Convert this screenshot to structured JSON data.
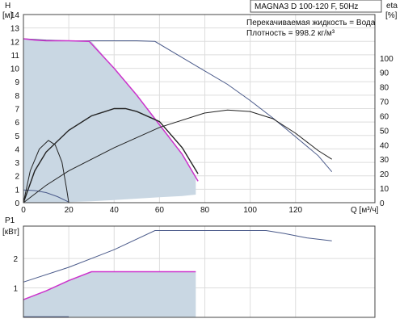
{
  "chart_data": [
    {
      "type": "line",
      "title": "MAGNA3 D 100-120 F, 50Hz",
      "annotations": [
        "Перекачиваемая жидкость = Вода",
        "Плотность = 998.2 кг/м³"
      ],
      "xlabel": "Q [м³/ч]",
      "ylabel": "H",
      "ylabel_unit": "[м]",
      "y2label": "eta",
      "y2label_unit": "[%]",
      "xlim": [
        0,
        155
      ],
      "ylim": [
        0,
        14
      ],
      "y2lim": [
        0,
        130
      ],
      "x_ticks": [
        "0",
        "20",
        "40",
        "60",
        "80",
        "100",
        "120"
      ],
      "y_ticks": [
        "0",
        "1",
        "2",
        "3",
        "4",
        "5",
        "6",
        "7",
        "8",
        "9",
        "10",
        "11",
        "12",
        "13",
        "14"
      ],
      "y2_ticks": [
        "0",
        "10",
        "20",
        "30",
        "40",
        "50",
        "60",
        "70",
        "80",
        "90",
        "100"
      ],
      "grid": true,
      "colors": {
        "curve": "#4a5a8a",
        "efficiency": "#222222",
        "duty": "#cc33cc",
        "area": "#c9d7e3"
      },
      "series": [
        {
          "role": "head-max",
          "x": [
            0,
            10,
            20,
            30,
            40,
            50,
            58,
            70,
            80,
            90,
            100,
            110,
            120,
            130,
            136
          ],
          "values": [
            12.2,
            12.1,
            12.05,
            12.05,
            12.05,
            12.05,
            12.0,
            10.8,
            9.8,
            8.8,
            7.6,
            6.3,
            4.9,
            3.5,
            2.3
          ]
        },
        {
          "role": "head-duty",
          "x": [
            0,
            5,
            10,
            20,
            29,
            40,
            50,
            60,
            70,
            77
          ],
          "values": [
            12.2,
            12.1,
            12.05,
            12.05,
            12.0,
            10.0,
            8.0,
            5.8,
            3.6,
            1.6
          ]
        },
        {
          "role": "head-min",
          "x": [
            0,
            5,
            10,
            15,
            20
          ],
          "values": [
            0.95,
            0.9,
            0.75,
            0.45,
            0.05
          ]
        },
        {
          "role": "efficiency-duty",
          "x": [
            0,
            5,
            10,
            20,
            30,
            40,
            45,
            50,
            60,
            70,
            77
          ],
          "values": [
            0,
            22,
            35,
            50,
            60,
            65,
            65,
            63,
            56,
            38,
            20
          ]
        },
        {
          "role": "efficiency-max",
          "x": [
            0,
            10,
            20,
            40,
            60,
            80,
            90,
            100,
            110,
            120,
            130,
            136
          ],
          "values": [
            0,
            12,
            22,
            38,
            52,
            62,
            64,
            63,
            58,
            48,
            36,
            30
          ]
        },
        {
          "role": "efficiency-min",
          "x": [
            0,
            3,
            7,
            11,
            14,
            17,
            19,
            20
          ],
          "values": [
            0,
            22,
            37,
            43,
            40,
            28,
            10,
            0
          ]
        }
      ],
      "duty_area": {
        "x": [
          0,
          10,
          20,
          30,
          40,
          50,
          60,
          70,
          76,
          76,
          70,
          60,
          50,
          40,
          30,
          20,
          10,
          0
        ],
        "values": [
          12.2,
          12.05,
          12.05,
          12.0,
          10.0,
          8.0,
          5.8,
          3.6,
          1.9,
          0.6,
          0.5,
          0.4,
          0.3,
          0.2,
          0.1,
          0.05,
          0.02,
          0
        ]
      }
    },
    {
      "type": "line",
      "ylabel": "P1",
      "ylabel_unit": "[кВт]",
      "xlim": [
        0,
        155
      ],
      "ylim": [
        0,
        3.1
      ],
      "y_ticks": [
        "1",
        "2"
      ],
      "grid": true,
      "series": [
        {
          "role": "power-max",
          "x": [
            0,
            20,
            40,
            58,
            80,
            100,
            107,
            115,
            125,
            136
          ],
          "values": [
            1.2,
            1.7,
            2.3,
            2.95,
            2.95,
            2.95,
            2.95,
            2.85,
            2.7,
            2.6
          ]
        },
        {
          "role": "power-duty",
          "x": [
            0,
            10,
            20,
            30,
            50,
            76
          ],
          "values": [
            0.6,
            0.9,
            1.25,
            1.55,
            1.55,
            1.55
          ]
        },
        {
          "role": "power-min",
          "x": [
            0,
            20
          ],
          "values": [
            0.02,
            0.02
          ]
        }
      ],
      "duty_area": {
        "x": [
          0,
          10,
          20,
          30,
          50,
          70,
          76,
          76,
          0
        ],
        "values": [
          0.6,
          0.9,
          1.25,
          1.55,
          1.55,
          1.55,
          1.55,
          0,
          0
        ]
      }
    }
  ]
}
